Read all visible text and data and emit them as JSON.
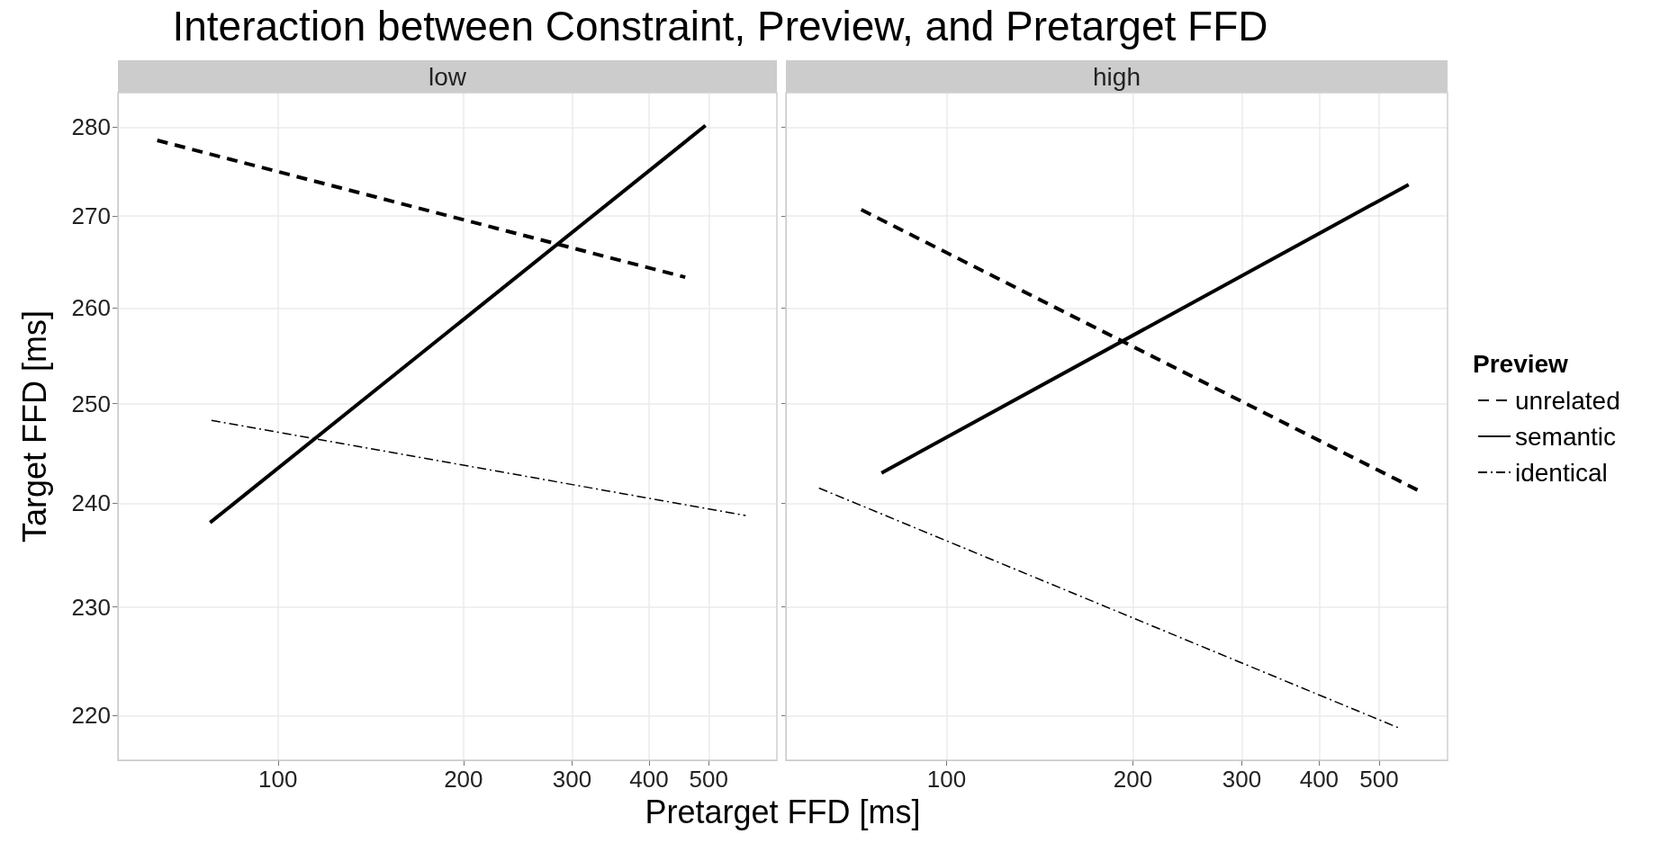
{
  "chart_data": [
    {
      "type": "line",
      "title": "Interaction between Constraint, Preview, and Pretarget FFD",
      "subtitle": "low",
      "xlabel": "Pretarget FFD [ms]",
      "ylabel": "Target FFD [ms]",
      "log": "xy",
      "grid": true,
      "xlim": [
        55,
        645
      ],
      "ylim": [
        216,
        284
      ],
      "xticks": [
        100,
        200,
        300,
        400,
        500
      ],
      "yticks": [
        220,
        230,
        240,
        250,
        260,
        270,
        280
      ],
      "marker": "none",
      "series": [
        {
          "color": "#000000",
          "line_style": "dashed",
          "x": [
            63.7,
            458
          ],
          "values": [
            278.5,
            263.3
          ]
        },
        {
          "color": "#000000",
          "line_style": "solid",
          "x": [
            77.6,
            494
          ],
          "values": [
            238.1,
            280.2
          ]
        },
        {
          "color": "#000000",
          "line_style": "dotted",
          "x": [
            78,
            574
          ],
          "values": [
            248.3,
            238.8
          ]
        }
      ]
    },
    {
      "type": "line",
      "subtitle": "high",
      "log": "xy",
      "grid": true,
      "xlim": [
        55,
        645
      ],
      "ylim": [
        216,
        284
      ],
      "xticks": [
        100,
        200,
        300,
        400,
        500
      ],
      "yticks": [
        220,
        230,
        240,
        250,
        260,
        270,
        280
      ],
      "tick_labels": "x",
      "marker": "none",
      "legend": "right",
      "legend_title": "Preview",
      "series": [
        {
          "name": "unrelated",
          "color": "#000000",
          "line_style": "dashed",
          "x": [
            72.8,
            577
          ],
          "values": [
            270.7,
            241.3
          ]
        },
        {
          "name": "semantic",
          "color": "#000000",
          "line_style": "solid",
          "x": [
            78.5,
            558
          ],
          "values": [
            243.0,
            273.5
          ]
        },
        {
          "name": "identical",
          "color": "#000000",
          "line_style": "dotted",
          "x": [
            62.2,
            537
          ],
          "values": [
            241.5,
            218.9
          ]
        }
      ]
    }
  ]
}
